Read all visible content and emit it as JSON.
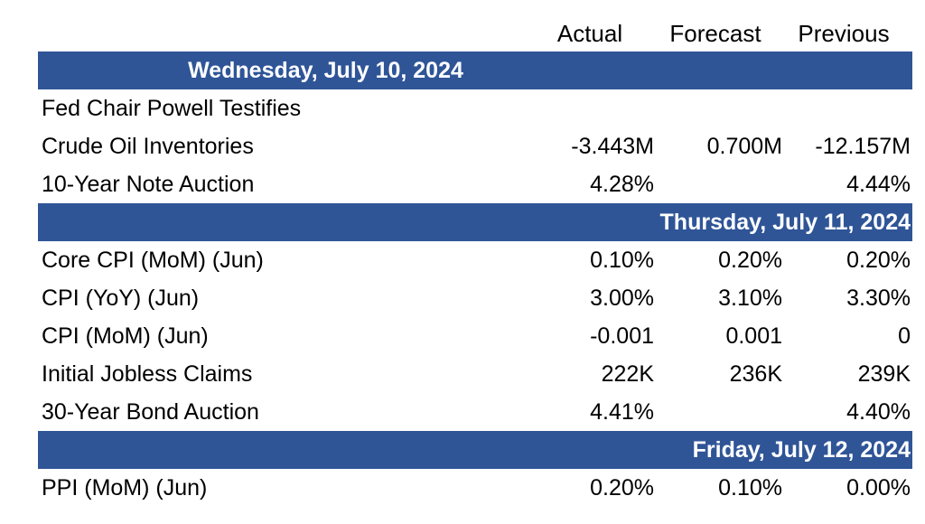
{
  "columns": {
    "actual": "Actual",
    "forecast": "Forecast",
    "previous": "Previous"
  },
  "days": [
    {
      "heading": "Wednesday, July 10, 2024",
      "rows": [
        {
          "event": "Fed Chair Powell Testifies",
          "actual": "",
          "forecast": "",
          "previous": ""
        },
        {
          "event": "Crude Oil Inventories",
          "actual": "-3.443M",
          "forecast": "0.700M",
          "previous": "-12.157M"
        },
        {
          "event": "10-Year Note Auction",
          "actual": "4.28%",
          "forecast": "",
          "previous": "4.44%"
        }
      ]
    },
    {
      "heading": "Thursday, July 11, 2024",
      "rows": [
        {
          "event": "Core CPI (MoM) (Jun)",
          "actual": "0.10%",
          "forecast": "0.20%",
          "previous": "0.20%"
        },
        {
          "event": "CPI (YoY) (Jun)",
          "actual": "3.00%",
          "forecast": "3.10%",
          "previous": "3.30%"
        },
        {
          "event": "CPI (MoM) (Jun)",
          "actual": "-0.001",
          "forecast": "0.001",
          "previous": "0"
        },
        {
          "event": "Initial Jobless Claims",
          "actual": "222K",
          "forecast": "236K",
          "previous": "239K"
        },
        {
          "event": "30-Year Bond Auction",
          "actual": "4.41%",
          "forecast": "",
          "previous": "4.40%"
        }
      ]
    },
    {
      "heading": "Friday, July 12, 2024",
      "rows": [
        {
          "event": "PPI (MoM) (Jun)",
          "actual": "0.20%",
          "forecast": "0.10%",
          "previous": "0.00%"
        }
      ]
    }
  ],
  "colors": {
    "day_bar": "#2f5597",
    "day_bar_text": "#ffffff"
  }
}
